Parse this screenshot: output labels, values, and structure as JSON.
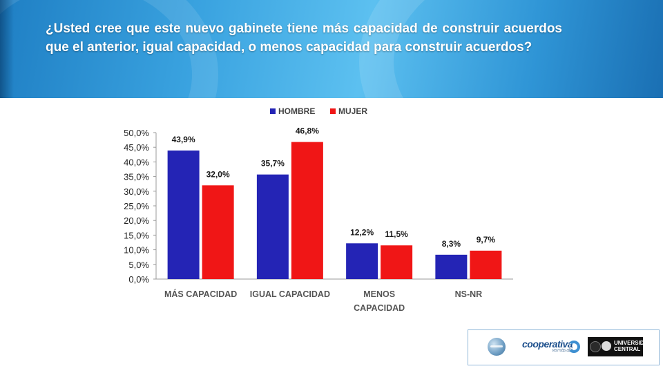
{
  "header": {
    "question": "¿Usted cree que este nuevo gabinete tiene más capacidad de construir acuerdos que el anterior, igual capacidad, o menos capacidad para construir acuerdos?"
  },
  "chart_data": {
    "type": "bar",
    "title": "",
    "xlabel": "",
    "ylabel": "",
    "categories": [
      "MÁS  CAPACIDAD",
      "IGUAL  CAPACIDAD",
      "MENOS CAPACIDAD",
      "NS-NR"
    ],
    "series": [
      {
        "name": "HOMBRE",
        "color": "#2424b5",
        "values": [
          43.9,
          35.7,
          12.2,
          8.3
        ],
        "labels": [
          "43,9%",
          "35,7%",
          "12,2%",
          "8,3%"
        ]
      },
      {
        "name": "MUJER",
        "color": "#f01616",
        "values": [
          32.0,
          46.8,
          11.5,
          9.7
        ],
        "labels": [
          "32,0%",
          "46,8%",
          "11,5%",
          "9,7%"
        ]
      }
    ],
    "ylim": [
      0,
      50
    ],
    "yticks": [
      "0,0%",
      "5,0%",
      "10,0%",
      "15,0%",
      "20,0%",
      "25,0%",
      "30,0%",
      "35,0%",
      "40,0%",
      "45,0%",
      "50,0%"
    ],
    "legend_position": "top",
    "grid": false
  },
  "logos": {
    "brand1": "cooperativa",
    "brand1_sub": "va más allá",
    "brand2": "UNIVERSIDAD CENTRAL"
  }
}
